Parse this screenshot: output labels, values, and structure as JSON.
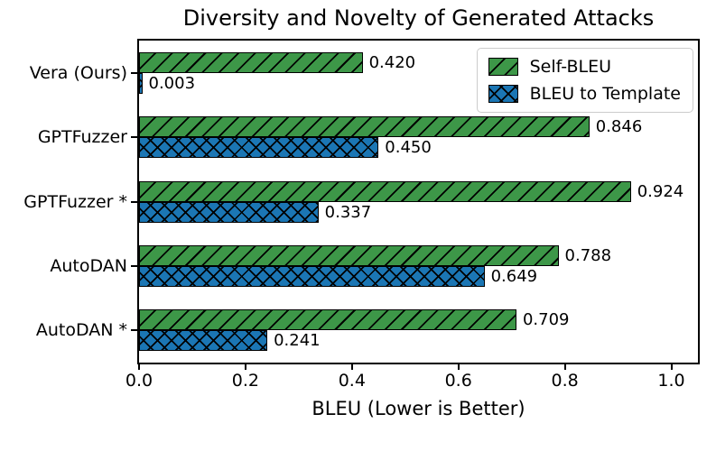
{
  "figure": {
    "background": "#ffffff",
    "text_color": "#000000"
  },
  "chart_data": {
    "type": "bar",
    "orientation": "horizontal",
    "title": "Diversity and Novelty of Generated Attacks",
    "xlabel": "BLEU (Lower is Better)",
    "ylabel": "",
    "categories": [
      "Vera (Ours)",
      "GPTFuzzer",
      "GPTFuzzer *",
      "AutoDAN",
      "AutoDAN *"
    ],
    "series": [
      {
        "name": "Self-BLEU",
        "color": "#3d9748",
        "hatch": "/",
        "values": [
          0.42,
          0.846,
          0.924,
          0.788,
          0.709
        ],
        "value_labels": [
          "0.420",
          "0.846",
          "0.924",
          "0.788",
          "0.709"
        ]
      },
      {
        "name": "BLEU to Template",
        "color": "#1b76b4",
        "hatch": "xx",
        "values": [
          0.003,
          0.45,
          0.337,
          0.649,
          0.241
        ],
        "value_labels": [
          "0.003",
          "0.450",
          "0.337",
          "0.649",
          "0.241"
        ]
      }
    ],
    "edge_color": "#000000",
    "xlim": [
      0,
      1.05
    ],
    "xticks": [
      0.0,
      0.2,
      0.4,
      0.6,
      0.8,
      1.0
    ],
    "xtick_labels": [
      "0.0",
      "0.2",
      "0.4",
      "0.6",
      "0.8",
      "1.0"
    ],
    "legend_position": "upper right",
    "legend_border_color": "#cccccc",
    "grid": false
  }
}
